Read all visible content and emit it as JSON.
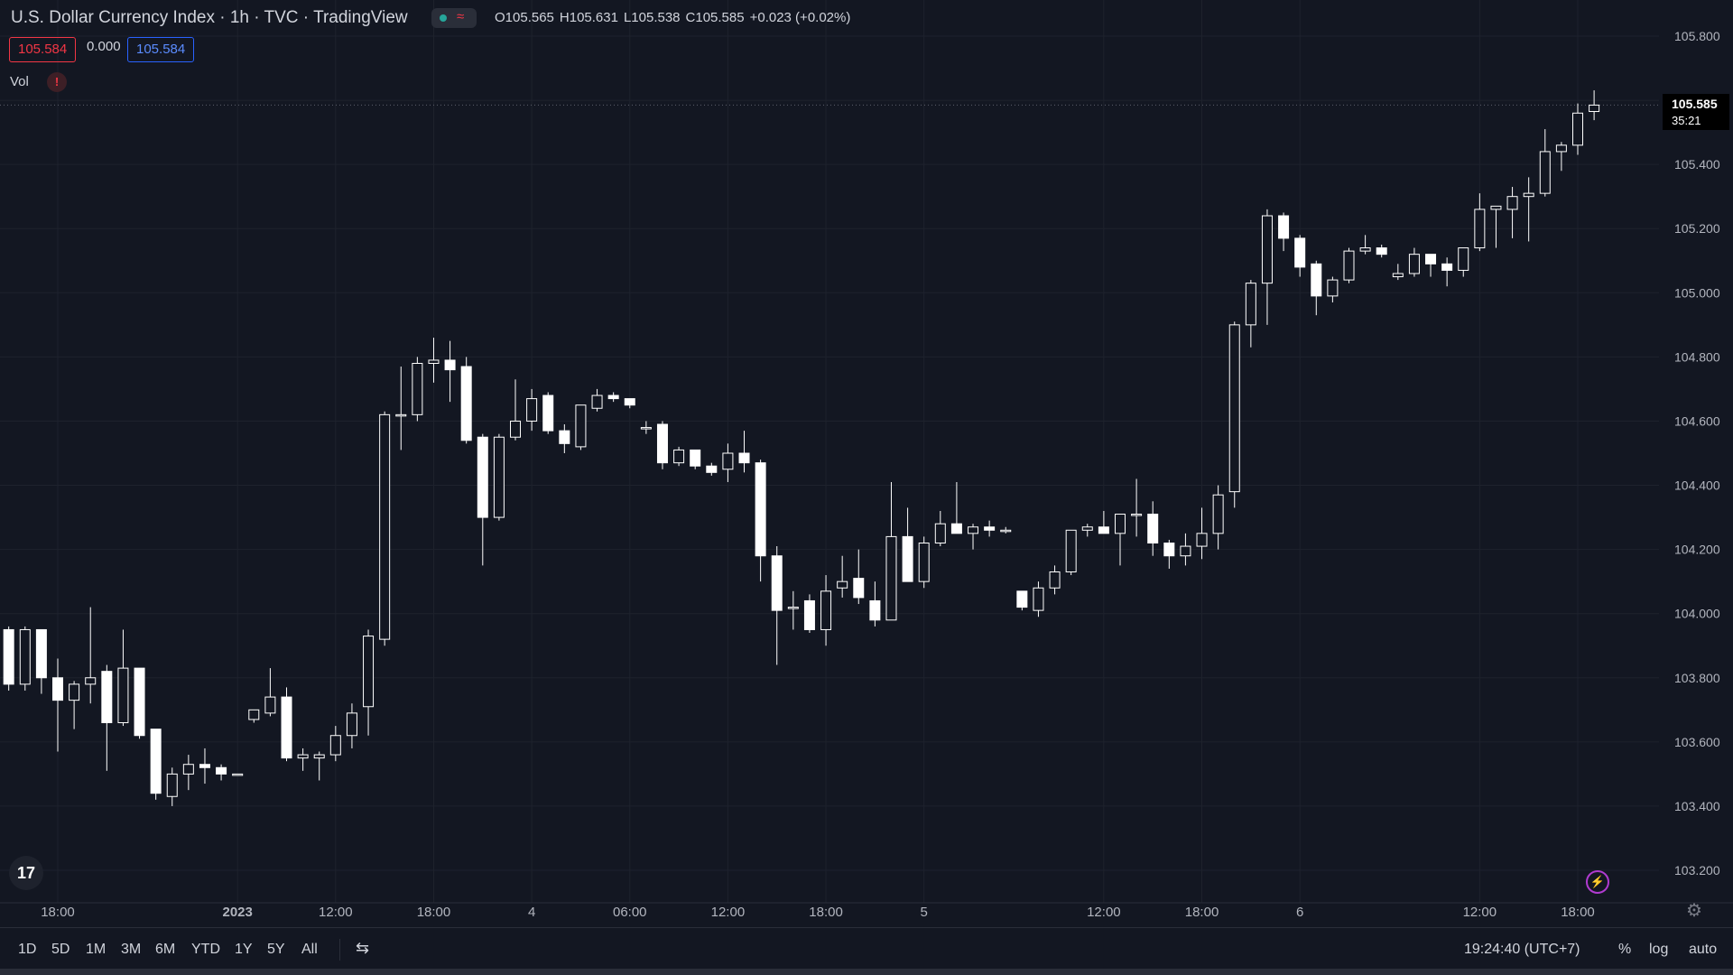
{
  "header": {
    "title": "U.S. Dollar Currency Index · 1h · TVC · TradingView",
    "status_wave_icon": "wave-icon",
    "ohlc": {
      "open": "O105.565",
      "high": "H105.631",
      "low": "L105.538",
      "close": "C105.585",
      "change": "+0.023 (+0.02%)"
    },
    "bid": "105.584",
    "spread": "0.000",
    "ask": "105.584",
    "vol_label": "Vol",
    "vol_warning": "!"
  },
  "last_price": {
    "price": "105.585",
    "countdown": "35:21"
  },
  "colors": {
    "background": "#131722",
    "candle": "#ffffff",
    "grid": "#1e222d",
    "bid": "#f23645",
    "ask": "#2962ff"
  },
  "chart_data": {
    "type": "candlestick",
    "ylim": [
      103.14,
      105.86
    ],
    "y_ticks": [
      103.2,
      103.4,
      103.6,
      103.8,
      104.0,
      104.2,
      104.4,
      104.6,
      104.8,
      105.0,
      105.2,
      105.4,
      105.6,
      105.8
    ],
    "y_tick_labels": [
      "103.200",
      "103.400",
      "103.600",
      "103.800",
      "104.000",
      "104.200",
      "104.400",
      "104.600",
      "104.800",
      "105.000",
      "105.200",
      "105.400",
      "105.600",
      "105.800"
    ],
    "x_tick_labels": [
      {
        "label": "18:00",
        "slot": 3,
        "bold": false
      },
      {
        "label": "2023",
        "slot": 14,
        "bold": true
      },
      {
        "label": "12:00",
        "slot": 20,
        "bold": false
      },
      {
        "label": "18:00",
        "slot": 26,
        "bold": false
      },
      {
        "label": "4",
        "slot": 32,
        "bold": false
      },
      {
        "label": "06:00",
        "slot": 38,
        "bold": false
      },
      {
        "label": "12:00",
        "slot": 44,
        "bold": false
      },
      {
        "label": "18:00",
        "slot": 50,
        "bold": false
      },
      {
        "label": "5",
        "slot": 56,
        "bold": false
      },
      {
        "label": "12:00",
        "slot": 67,
        "bold": false
      },
      {
        "label": "18:00",
        "slot": 73,
        "bold": false
      },
      {
        "label": "6",
        "slot": 79,
        "bold": false
      },
      {
        "label": "12:00",
        "slot": 90,
        "bold": false
      },
      {
        "label": "18:00",
        "slot": 96,
        "bold": false
      }
    ],
    "x_slots": {
      "first": 3,
      "step": 59.8
    },
    "candles": [
      {
        "t": 0,
        "o": 103.95,
        "h": 103.96,
        "l": 103.76,
        "c": 103.78
      },
      {
        "t": 1,
        "o": 103.78,
        "h": 103.96,
        "l": 103.76,
        "c": 103.95
      },
      {
        "t": 2,
        "o": 103.95,
        "h": 103.95,
        "l": 103.75,
        "c": 103.8
      },
      {
        "t": 3,
        "o": 103.8,
        "h": 103.86,
        "l": 103.57,
        "c": 103.73
      },
      {
        "t": 4,
        "o": 103.73,
        "h": 103.79,
        "l": 103.64,
        "c": 103.78
      },
      {
        "t": 5,
        "o": 103.78,
        "h": 104.02,
        "l": 103.72,
        "c": 103.8
      },
      {
        "t": 6,
        "o": 103.82,
        "h": 103.84,
        "l": 103.51,
        "c": 103.66
      },
      {
        "t": 7,
        "o": 103.66,
        "h": 103.95,
        "l": 103.65,
        "c": 103.83
      },
      {
        "t": 8,
        "o": 103.83,
        "h": 103.83,
        "l": 103.61,
        "c": 103.62
      },
      {
        "t": 9,
        "o": 103.64,
        "h": 103.64,
        "l": 103.42,
        "c": 103.44
      },
      {
        "t": 10,
        "o": 103.43,
        "h": 103.52,
        "l": 103.4,
        "c": 103.5
      },
      {
        "t": 11,
        "o": 103.5,
        "h": 103.56,
        "l": 103.45,
        "c": 103.53
      },
      {
        "t": 12,
        "o": 103.53,
        "h": 103.58,
        "l": 103.47,
        "c": 103.52
      },
      {
        "t": 13,
        "o": 103.52,
        "h": 103.53,
        "l": 103.48,
        "c": 103.5
      },
      {
        "t": 14,
        "o": 103.5,
        "h": 103.5,
        "l": 103.5,
        "c": 103.5
      },
      {
        "t": 15,
        "o": 103.67,
        "h": 103.7,
        "l": 103.66,
        "c": 103.7
      },
      {
        "t": 16,
        "o": 103.69,
        "h": 103.83,
        "l": 103.68,
        "c": 103.74
      },
      {
        "t": 17,
        "o": 103.74,
        "h": 103.77,
        "l": 103.54,
        "c": 103.55
      },
      {
        "t": 18,
        "o": 103.55,
        "h": 103.58,
        "l": 103.51,
        "c": 103.56
      },
      {
        "t": 19,
        "o": 103.55,
        "h": 103.57,
        "l": 103.48,
        "c": 103.56
      },
      {
        "t": 20,
        "o": 103.56,
        "h": 103.65,
        "l": 103.54,
        "c": 103.62
      },
      {
        "t": 21,
        "o": 103.62,
        "h": 103.72,
        "l": 103.58,
        "c": 103.69
      },
      {
        "t": 22,
        "o": 103.71,
        "h": 103.95,
        "l": 103.62,
        "c": 103.93
      },
      {
        "t": 23,
        "o": 103.92,
        "h": 104.63,
        "l": 103.9,
        "c": 104.62
      },
      {
        "t": 24,
        "o": 104.62,
        "h": 104.77,
        "l": 104.51,
        "c": 104.62
      },
      {
        "t": 25,
        "o": 104.62,
        "h": 104.8,
        "l": 104.6,
        "c": 104.78
      },
      {
        "t": 26,
        "o": 104.78,
        "h": 104.86,
        "l": 104.72,
        "c": 104.79
      },
      {
        "t": 27,
        "o": 104.79,
        "h": 104.85,
        "l": 104.66,
        "c": 104.76
      },
      {
        "t": 28,
        "o": 104.77,
        "h": 104.8,
        "l": 104.53,
        "c": 104.54
      },
      {
        "t": 29,
        "o": 104.55,
        "h": 104.56,
        "l": 104.15,
        "c": 104.3
      },
      {
        "t": 30,
        "o": 104.3,
        "h": 104.56,
        "l": 104.29,
        "c": 104.55
      },
      {
        "t": 31,
        "o": 104.55,
        "h": 104.73,
        "l": 104.54,
        "c": 104.6
      },
      {
        "t": 32,
        "o": 104.6,
        "h": 104.7,
        "l": 104.57,
        "c": 104.67
      },
      {
        "t": 33,
        "o": 104.68,
        "h": 104.69,
        "l": 104.56,
        "c": 104.57
      },
      {
        "t": 34,
        "o": 104.57,
        "h": 104.59,
        "l": 104.5,
        "c": 104.53
      },
      {
        "t": 35,
        "o": 104.52,
        "h": 104.65,
        "l": 104.51,
        "c": 104.65
      },
      {
        "t": 36,
        "o": 104.64,
        "h": 104.7,
        "l": 104.63,
        "c": 104.68
      },
      {
        "t": 37,
        "o": 104.68,
        "h": 104.69,
        "l": 104.66,
        "c": 104.67
      },
      {
        "t": 38,
        "o": 104.67,
        "h": 104.67,
        "l": 104.64,
        "c": 104.65
      },
      {
        "t": 39,
        "o": 104.58,
        "h": 104.6,
        "l": 104.56,
        "c": 104.58
      },
      {
        "t": 40,
        "o": 104.59,
        "h": 104.6,
        "l": 104.45,
        "c": 104.47
      },
      {
        "t": 41,
        "o": 104.47,
        "h": 104.52,
        "l": 104.46,
        "c": 104.51
      },
      {
        "t": 42,
        "o": 104.51,
        "h": 104.51,
        "l": 104.45,
        "c": 104.46
      },
      {
        "t": 43,
        "o": 104.46,
        "h": 104.47,
        "l": 104.43,
        "c": 104.44
      },
      {
        "t": 44,
        "o": 104.45,
        "h": 104.53,
        "l": 104.41,
        "c": 104.5
      },
      {
        "t": 45,
        "o": 104.5,
        "h": 104.57,
        "l": 104.44,
        "c": 104.47
      },
      {
        "t": 46,
        "o": 104.47,
        "h": 104.48,
        "l": 104.1,
        "c": 104.18
      },
      {
        "t": 47,
        "o": 104.18,
        "h": 104.21,
        "l": 103.84,
        "c": 104.01
      },
      {
        "t": 48,
        "o": 104.02,
        "h": 104.07,
        "l": 103.95,
        "c": 104.02
      },
      {
        "t": 49,
        "o": 104.04,
        "h": 104.06,
        "l": 103.94,
        "c": 103.95
      },
      {
        "t": 50,
        "o": 103.95,
        "h": 104.12,
        "l": 103.9,
        "c": 104.07
      },
      {
        "t": 51,
        "o": 104.08,
        "h": 104.18,
        "l": 104.05,
        "c": 104.1
      },
      {
        "t": 52,
        "o": 104.11,
        "h": 104.2,
        "l": 104.03,
        "c": 104.05
      },
      {
        "t": 53,
        "o": 104.04,
        "h": 104.1,
        "l": 103.96,
        "c": 103.98
      },
      {
        "t": 54,
        "o": 103.98,
        "h": 104.41,
        "l": 103.98,
        "c": 104.24
      },
      {
        "t": 55,
        "o": 104.24,
        "h": 104.33,
        "l": 104.1,
        "c": 104.1
      },
      {
        "t": 56,
        "o": 104.1,
        "h": 104.24,
        "l": 104.08,
        "c": 104.22
      },
      {
        "t": 57,
        "o": 104.22,
        "h": 104.32,
        "l": 104.21,
        "c": 104.28
      },
      {
        "t": 58,
        "o": 104.28,
        "h": 104.41,
        "l": 104.25,
        "c": 104.25
      },
      {
        "t": 59,
        "o": 104.25,
        "h": 104.28,
        "l": 104.2,
        "c": 104.27
      },
      {
        "t": 60,
        "o": 104.27,
        "h": 104.29,
        "l": 104.24,
        "c": 104.26
      },
      {
        "t": 61,
        "o": 104.26,
        "h": 104.27,
        "l": 104.25,
        "c": 104.26
      },
      {
        "t": 62,
        "o": 104.07,
        "h": 104.07,
        "l": 104.01,
        "c": 104.02
      },
      {
        "t": 63,
        "o": 104.01,
        "h": 104.1,
        "l": 103.99,
        "c": 104.08
      },
      {
        "t": 64,
        "o": 104.08,
        "h": 104.15,
        "l": 104.06,
        "c": 104.13
      },
      {
        "t": 65,
        "o": 104.13,
        "h": 104.26,
        "l": 104.12,
        "c": 104.26
      },
      {
        "t": 66,
        "o": 104.26,
        "h": 104.28,
        "l": 104.24,
        "c": 104.27
      },
      {
        "t": 67,
        "o": 104.27,
        "h": 104.32,
        "l": 104.25,
        "c": 104.25
      },
      {
        "t": 68,
        "o": 104.25,
        "h": 104.31,
        "l": 104.15,
        "c": 104.31
      },
      {
        "t": 69,
        "o": 104.31,
        "h": 104.42,
        "l": 104.24,
        "c": 104.31
      },
      {
        "t": 70,
        "o": 104.31,
        "h": 104.35,
        "l": 104.18,
        "c": 104.22
      },
      {
        "t": 71,
        "o": 104.22,
        "h": 104.23,
        "l": 104.14,
        "c": 104.18
      },
      {
        "t": 72,
        "o": 104.18,
        "h": 104.25,
        "l": 104.15,
        "c": 104.21
      },
      {
        "t": 73,
        "o": 104.21,
        "h": 104.33,
        "l": 104.17,
        "c": 104.25
      },
      {
        "t": 74,
        "o": 104.25,
        "h": 104.4,
        "l": 104.2,
        "c": 104.37
      },
      {
        "t": 75,
        "o": 104.38,
        "h": 104.91,
        "l": 104.33,
        "c": 104.9
      },
      {
        "t": 76,
        "o": 104.9,
        "h": 105.04,
        "l": 104.83,
        "c": 105.03
      },
      {
        "t": 77,
        "o": 105.03,
        "h": 105.26,
        "l": 104.9,
        "c": 105.24
      },
      {
        "t": 78,
        "o": 105.24,
        "h": 105.25,
        "l": 105.13,
        "c": 105.17
      },
      {
        "t": 79,
        "o": 105.17,
        "h": 105.18,
        "l": 105.05,
        "c": 105.08
      },
      {
        "t": 80,
        "o": 105.09,
        "h": 105.1,
        "l": 104.93,
        "c": 104.99
      },
      {
        "t": 81,
        "o": 104.99,
        "h": 105.05,
        "l": 104.97,
        "c": 105.04
      },
      {
        "t": 82,
        "o": 105.04,
        "h": 105.14,
        "l": 105.03,
        "c": 105.13
      },
      {
        "t": 83,
        "o": 105.13,
        "h": 105.18,
        "l": 105.12,
        "c": 105.14
      },
      {
        "t": 84,
        "o": 105.14,
        "h": 105.15,
        "l": 105.11,
        "c": 105.12
      },
      {
        "t": 85,
        "o": 105.05,
        "h": 105.09,
        "l": 105.04,
        "c": 105.06
      },
      {
        "t": 86,
        "o": 105.06,
        "h": 105.14,
        "l": 105.05,
        "c": 105.12
      },
      {
        "t": 87,
        "o": 105.12,
        "h": 105.12,
        "l": 105.05,
        "c": 105.09
      },
      {
        "t": 88,
        "o": 105.09,
        "h": 105.11,
        "l": 105.02,
        "c": 105.07
      },
      {
        "t": 89,
        "o": 105.07,
        "h": 105.14,
        "l": 105.05,
        "c": 105.14
      },
      {
        "t": 90,
        "o": 105.14,
        "h": 105.31,
        "l": 105.13,
        "c": 105.26
      },
      {
        "t": 91,
        "o": 105.26,
        "h": 105.27,
        "l": 105.14,
        "c": 105.27
      },
      {
        "t": 92,
        "o": 105.26,
        "h": 105.33,
        "l": 105.17,
        "c": 105.3
      },
      {
        "t": 93,
        "o": 105.3,
        "h": 105.36,
        "l": 105.16,
        "c": 105.31
      },
      {
        "t": 94,
        "o": 105.31,
        "h": 105.51,
        "l": 105.3,
        "c": 105.44
      },
      {
        "t": 95,
        "o": 105.44,
        "h": 105.47,
        "l": 105.38,
        "c": 105.46
      },
      {
        "t": 96,
        "o": 105.46,
        "h": 105.59,
        "l": 105.43,
        "c": 105.56
      },
      {
        "t": 97,
        "o": 105.565,
        "h": 105.631,
        "l": 105.538,
        "c": 105.585
      }
    ]
  },
  "toolbar": {
    "ranges": [
      "1D",
      "5D",
      "1M",
      "3M",
      "6M",
      "YTD",
      "1Y",
      "5Y",
      "All"
    ],
    "compare_icon": "compare-icon",
    "clock": "19:24:40 (UTC+7)",
    "percent": "%",
    "log": "log",
    "auto": "auto"
  },
  "icons": {
    "logo": "tradingview-logo-icon",
    "settings": "gear-icon",
    "bolt": "lightning-icon"
  },
  "tv_logo_text": "17"
}
